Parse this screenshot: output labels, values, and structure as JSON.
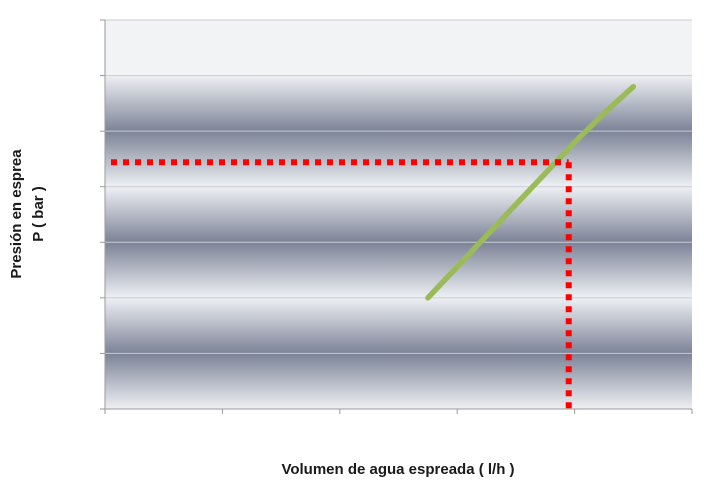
{
  "chart_data": {
    "type": "line",
    "title": "",
    "xlabel": "Volumen de agua espreada ( l/h )",
    "ylabel": [
      "Presión en esprea",
      "P  ( bar )"
    ],
    "xlim": [
      0,
      1000
    ],
    "ylim": [
      0,
      3.5
    ],
    "xticks": [
      "0",
      "200",
      "400",
      "600",
      "800",
      "1000"
    ],
    "yticks": [
      "0",
      "0.5",
      "1",
      "1.5",
      "2",
      "2.5",
      "3",
      "3.5"
    ],
    "grid": "horizontal",
    "legend": "none",
    "series": [
      {
        "color": "#9bbb59",
        "x": [
          550,
          600,
          650,
          700,
          750,
          800,
          850,
          900
        ],
        "y": [
          1.0,
          1.28,
          1.56,
          1.84,
          2.12,
          2.4,
          2.66,
          2.9
        ]
      }
    ],
    "annotations": [
      {
        "type": "dotted-guide",
        "color": "#ff0000",
        "x": 790,
        "y": 2.22
      }
    ]
  }
}
